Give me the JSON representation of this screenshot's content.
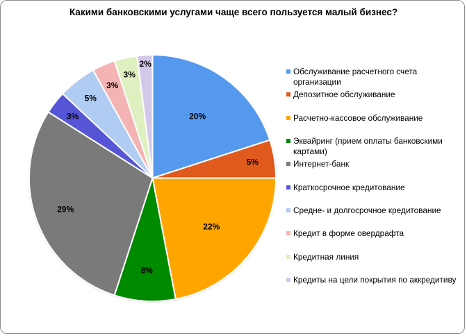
{
  "chart_data": {
    "type": "pie",
    "title": "Какими банковскими услугами чаще всего пользуется малый бизнес?",
    "categories": [
      "Обслуживание расчетного счета организации",
      "Депозитное обслуживание",
      "Расчетно-кассовое обслуживание",
      "Эквайринг (прием оплаты банковскими картами)",
      "Интернет-банк",
      "Краткосрочное кредитование",
      "Средне- и долгосрочное кредитование",
      "Кредит в форме овердрафта",
      "Кредитная линия",
      "Кредиты на цели покрытия по аккредитиву"
    ],
    "values": [
      20,
      5,
      22,
      8,
      29,
      3,
      5,
      3,
      3,
      2
    ],
    "labels": [
      "20%",
      "5%",
      "22%",
      "8%",
      "29%",
      "3%",
      "5%",
      "3%",
      "3%",
      "2%"
    ],
    "colors": [
      "#5599ee",
      "#e05a1e",
      "#ffa500",
      "#008a00",
      "#7a7a7a",
      "#5555d5",
      "#b0ccf2",
      "#f4b4b4",
      "#dff0c0",
      "#d4c8ea"
    ],
    "start_angle": "12 o'clock, clockwise",
    "legend_position": "right",
    "data_labels": "percent"
  },
  "chart": {
    "title": "Какими банковскими услугами чаще всего пользуется малый бизнес?"
  },
  "legend": {
    "items": [
      {
        "label": "Обслуживание расчетного счета организации",
        "color": "#5599ee"
      },
      {
        "label": "Депозитное обслуживание",
        "color": "#e05a1e"
      },
      {
        "label": "Расчетно-кассовое обслуживание",
        "color": "#ffa500"
      },
      {
        "label": "Эквайринг (прием оплаты банковскими картами)",
        "color": "#008a00"
      },
      {
        "label": "Интернет-банк",
        "color": "#7a7a7a"
      },
      {
        "label": "Краткосрочное кредитование",
        "color": "#5555d5"
      },
      {
        "label": "Средне- и долгосрочное кредитование",
        "color": "#b0ccf2"
      },
      {
        "label": "Кредит в форме овердрафта",
        "color": "#f4b4b4"
      },
      {
        "label": "Кредитная линия",
        "color": "#dff0c0"
      },
      {
        "label": "Кредиты на цели покрытия по аккредитиву",
        "color": "#d4c8ea"
      }
    ]
  }
}
